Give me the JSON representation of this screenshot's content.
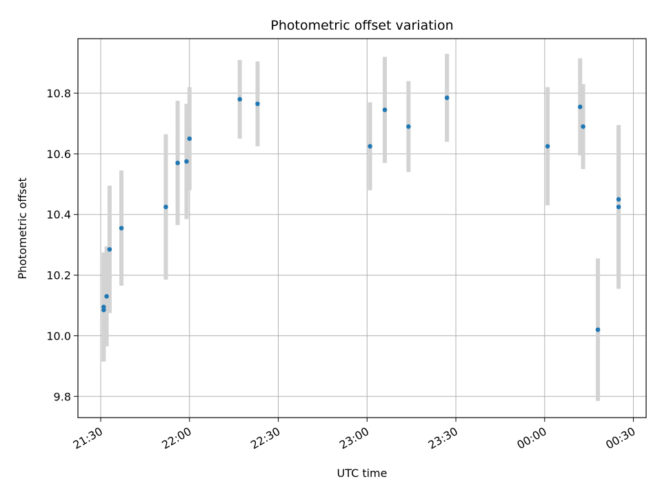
{
  "chart_data": {
    "type": "scatter",
    "title": "Photometric offset variation",
    "xlabel": "UTC time",
    "ylabel": "Photometric offset",
    "x_ticks": [
      "21:30",
      "22:00",
      "22:30",
      "23:00",
      "23:30",
      "00:00",
      "00:30"
    ],
    "x_tick_minutes": [
      0,
      30,
      60,
      90,
      120,
      150,
      180
    ],
    "y_ticks": [
      "9.8",
      "10.0",
      "10.2",
      "10.4",
      "10.6",
      "10.8"
    ],
    "y_tick_values": [
      9.8,
      10.0,
      10.2,
      10.4,
      10.6,
      10.8
    ],
    "xlim_minutes": [
      -7.7,
      184.3
    ],
    "ylim": [
      9.73,
      10.98
    ],
    "grid": true,
    "point_color": "#1f77b4",
    "errorbar_color": "#d3d3d3",
    "points": [
      {
        "x": "21:31",
        "y": 10.095,
        "err": 0.18
      },
      {
        "x": "21:31",
        "y": 10.085,
        "err": 0.17
      },
      {
        "x": "21:32",
        "y": 10.13,
        "err": 0.165
      },
      {
        "x": "21:33",
        "y": 10.285,
        "err": 0.21
      },
      {
        "x": "21:37",
        "y": 10.355,
        "err": 0.19
      },
      {
        "x": "21:52",
        "y": 10.425,
        "err": 0.24
      },
      {
        "x": "21:56",
        "y": 10.57,
        "err": 0.205
      },
      {
        "x": "21:59",
        "y": 10.575,
        "err": 0.19
      },
      {
        "x": "22:00",
        "y": 10.65,
        "err": 0.17
      },
      {
        "x": "22:17",
        "y": 10.78,
        "err": 0.13
      },
      {
        "x": "22:23",
        "y": 10.765,
        "err": 0.14
      },
      {
        "x": "23:01",
        "y": 10.625,
        "err": 0.145
      },
      {
        "x": "23:06",
        "y": 10.745,
        "err": 0.175
      },
      {
        "x": "23:14",
        "y": 10.69,
        "err": 0.15
      },
      {
        "x": "23:27",
        "y": 10.785,
        "err": 0.145
      },
      {
        "x": "00:01",
        "y": 10.625,
        "err": 0.195
      },
      {
        "x": "00:12",
        "y": 10.755,
        "err": 0.16
      },
      {
        "x": "00:13",
        "y": 10.69,
        "err": 0.14
      },
      {
        "x": "00:18",
        "y": 10.02,
        "err": 0.235
      },
      {
        "x": "00:25",
        "y": 10.425,
        "err": 0.27
      },
      {
        "x": "00:25",
        "y": 10.45,
        "err": 0.245
      }
    ]
  }
}
